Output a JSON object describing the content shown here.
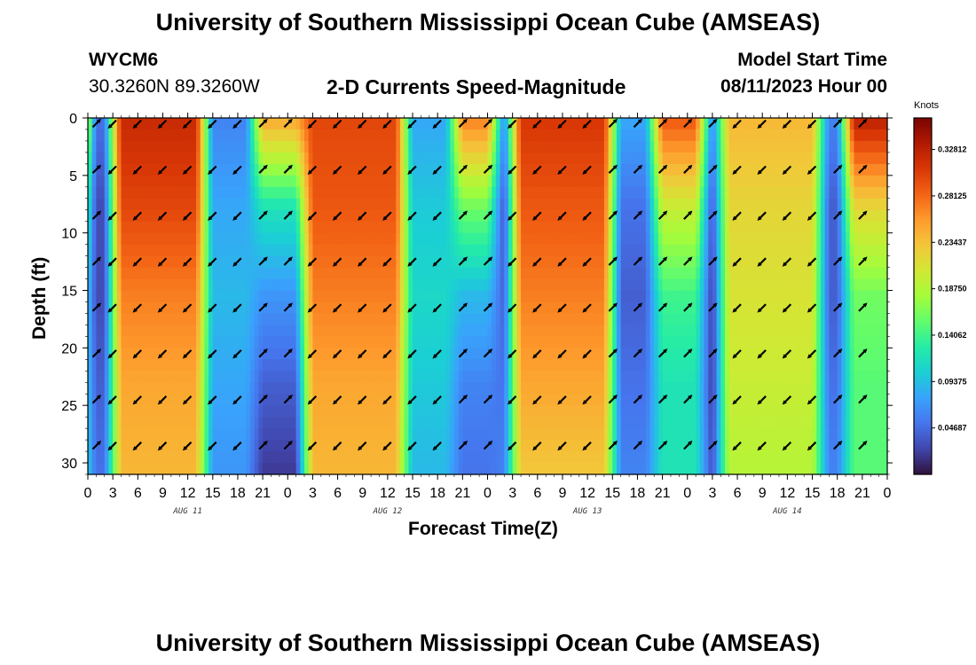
{
  "header": {
    "title": "University of Southern Mississippi Ocean Cube (AMSEAS)",
    "station_id": "WYCM6",
    "station_coords": "30.3260N  89.3260W",
    "chart_title": "2-D Currents Speed-Magnitude",
    "model_start_label": "Model Start Time",
    "model_start_value": "08/11/2023 Hour 00"
  },
  "footer": {
    "title": "University of Southern Mississippi Ocean Cube (AMSEAS)"
  },
  "chart_data": {
    "type": "heatmap",
    "title": "2-D Currents Speed-Magnitude",
    "xlabel": "Forecast Time(Z)",
    "ylabel": "Depth (ft)",
    "x_ticks": [
      "0",
      "3",
      "6",
      "9",
      "12",
      "15",
      "18",
      "21",
      "0",
      "3",
      "6",
      "9",
      "12",
      "15",
      "18",
      "21",
      "0",
      "3",
      "6",
      "9",
      "12",
      "15",
      "18",
      "21",
      "0",
      "3",
      "6",
      "9",
      "12",
      "15",
      "18",
      "21",
      "0"
    ],
    "x_day_labels": [
      "AUG 11",
      "AUG 12",
      "AUG 13",
      "AUG 14"
    ],
    "x_range_hours": [
      0,
      96
    ],
    "y_ticks": [
      "0",
      "5",
      "10",
      "15",
      "20",
      "25",
      "30"
    ],
    "y_range_ft": [
      0,
      31
    ],
    "y_inverted": true,
    "colorbar": {
      "label": "Knots",
      "tick_labels": [
        "0.32812",
        "0.28125",
        "0.23437",
        "0.18750",
        "0.14062",
        "0.09375",
        "0.04687"
      ],
      "tick_values": [
        0.32812,
        0.28125,
        0.23437,
        0.1875,
        0.14062,
        0.09375,
        0.04687
      ],
      "range": [
        0.0,
        0.36
      ],
      "colormap": [
        "#30123b",
        "#4145ab",
        "#4675ed",
        "#39a2fc",
        "#1bcfd4",
        "#24eca6",
        "#61fc6c",
        "#a4fc3b",
        "#d1e834",
        "#f3c63a",
        "#fe9b2d",
        "#f36315",
        "#d93806",
        "#b11901",
        "#7a0403"
      ]
    },
    "segments": [
      {
        "start": 0,
        "end": 3,
        "speed": [
          0.05,
          0.03,
          0.03,
          0.04,
          0.05
        ],
        "direction": "flood"
      },
      {
        "start": 3,
        "end": 14,
        "speed": [
          0.32,
          0.3,
          0.27,
          0.25,
          0.24
        ],
        "direction": "ebb"
      },
      {
        "start": 14,
        "end": 20,
        "speed": [
          0.06,
          0.08,
          0.09,
          0.08,
          0.07
        ],
        "direction": "ebb"
      },
      {
        "start": 20,
        "end": 26,
        "speed": [
          0.25,
          0.12,
          0.07,
          0.04,
          0.02
        ],
        "direction": "flood"
      },
      {
        "start": 26,
        "end": 38,
        "speed": [
          0.3,
          0.29,
          0.27,
          0.25,
          0.24
        ],
        "direction": "ebb"
      },
      {
        "start": 38,
        "end": 44,
        "speed": [
          0.08,
          0.1,
          0.11,
          0.1,
          0.09
        ],
        "direction": "ebb"
      },
      {
        "start": 44,
        "end": 49,
        "speed": [
          0.27,
          0.16,
          0.09,
          0.06,
          0.05
        ],
        "direction": "flood"
      },
      {
        "start": 49,
        "end": 51,
        "speed": [
          0.06,
          0.03,
          0.04,
          0.05,
          0.06
        ],
        "direction": "flood"
      },
      {
        "start": 51,
        "end": 63,
        "speed": [
          0.31,
          0.29,
          0.27,
          0.25,
          0.23
        ],
        "direction": "ebb"
      },
      {
        "start": 63,
        "end": 68,
        "speed": [
          0.08,
          0.05,
          0.04,
          0.05,
          0.06
        ],
        "direction": "flood"
      },
      {
        "start": 68,
        "end": 74,
        "speed": [
          0.29,
          0.2,
          0.14,
          0.12,
          0.12
        ],
        "direction": "flood"
      },
      {
        "start": 74,
        "end": 76,
        "speed": [
          0.06,
          0.03,
          0.02,
          0.02,
          0.03
        ],
        "direction": "flood"
      },
      {
        "start": 76,
        "end": 88,
        "speed": [
          0.24,
          0.22,
          0.21,
          0.2,
          0.19
        ],
        "direction": "ebb"
      },
      {
        "start": 88,
        "end": 91,
        "speed": [
          0.06,
          0.04,
          0.04,
          0.05,
          0.06
        ],
        "direction": "flood"
      },
      {
        "start": 91,
        "end": 96,
        "speed": [
          0.33,
          0.22,
          0.16,
          0.15,
          0.15
        ],
        "direction": "flood"
      }
    ],
    "arrow_times": [
      1,
      3,
      6,
      9,
      12,
      15,
      18,
      21,
      24,
      27,
      30,
      33,
      36,
      39,
      42,
      45,
      48,
      51,
      54,
      57,
      60,
      63,
      66,
      69,
      72,
      75,
      78,
      81,
      84,
      87,
      90,
      93
    ],
    "arrow_depths": [
      0.5,
      4.5,
      8.5,
      12.5,
      16.5,
      20.5,
      24.5,
      28.5
    ]
  }
}
